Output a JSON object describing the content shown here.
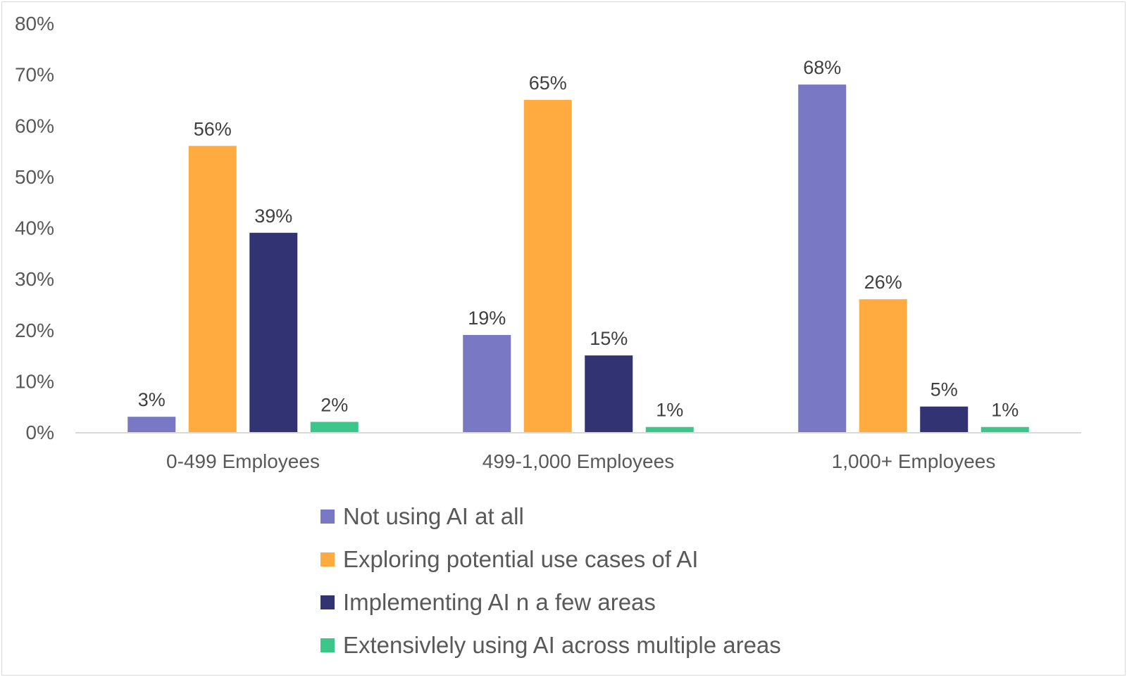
{
  "chart_data": {
    "type": "bar",
    "categories": [
      "0-499 Employees",
      "499-1,000 Employees",
      "1,000+ Employees"
    ],
    "series": [
      {
        "name": "Not using AI at all",
        "color": "#7878c4",
        "values": [
          3,
          19,
          68
        ],
        "labels": [
          "3%",
          "19%",
          "68%"
        ]
      },
      {
        "name": "Exploring potential use cases of AI",
        "color": "#ffab40",
        "values": [
          56,
          65,
          26
        ],
        "labels": [
          "56%",
          "65%",
          "26%"
        ]
      },
      {
        "name": "Implementing AI n a few areas",
        "color": "#313372",
        "values": [
          39,
          15,
          5
        ],
        "labels": [
          "39%",
          "15%",
          "5%"
        ]
      },
      {
        "name": "Extensivlely using AI across multiple areas",
        "color": "#3cc68a",
        "values": [
          2,
          1,
          1
        ],
        "labels": [
          "2%",
          "1%",
          "1%"
        ]
      }
    ],
    "yticks": [
      "0%",
      "10%",
      "20%",
      "30%",
      "40%",
      "50%",
      "60%",
      "70%",
      "80%"
    ],
    "ylim": [
      0,
      80
    ],
    "grid": false,
    "legend_position": "bottom",
    "title": "",
    "xlabel": "",
    "ylabel": ""
  }
}
